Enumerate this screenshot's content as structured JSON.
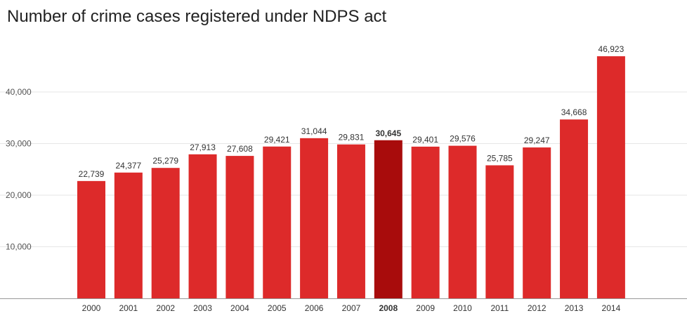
{
  "chart_data": {
    "type": "bar",
    "title": "Number of crime cases registered under NDPS act",
    "xlabel": "",
    "ylabel": "",
    "categories": [
      "2000",
      "2001",
      "2002",
      "2003",
      "2004",
      "2005",
      "2006",
      "2007",
      "2008",
      "2009",
      "2010",
      "2011",
      "2012",
      "2013",
      "2014"
    ],
    "values": [
      22739,
      24377,
      25279,
      27913,
      27608,
      29421,
      31044,
      29831,
      30645,
      29401,
      29576,
      25785,
      29247,
      34668,
      46923
    ],
    "value_labels": [
      "22,739",
      "24,377",
      "25,279",
      "27,913",
      "27,608",
      "29,421",
      "31,044",
      "29,831",
      "30,645",
      "29,401",
      "29,576",
      "25,785",
      "29,247",
      "34,668",
      "46,923"
    ],
    "highlighted_category": "2008",
    "ylim": [
      0,
      50000
    ],
    "yticks": [
      10000,
      20000,
      30000,
      40000
    ],
    "ytick_labels": [
      "10,000",
      "20,000",
      "30,000",
      "40,000"
    ],
    "grid": true,
    "colors": {
      "bar": "#dd2a2a",
      "bar_highlight": "#a80c0c",
      "grid": "#e6e6e6",
      "axis": "#999999"
    }
  }
}
